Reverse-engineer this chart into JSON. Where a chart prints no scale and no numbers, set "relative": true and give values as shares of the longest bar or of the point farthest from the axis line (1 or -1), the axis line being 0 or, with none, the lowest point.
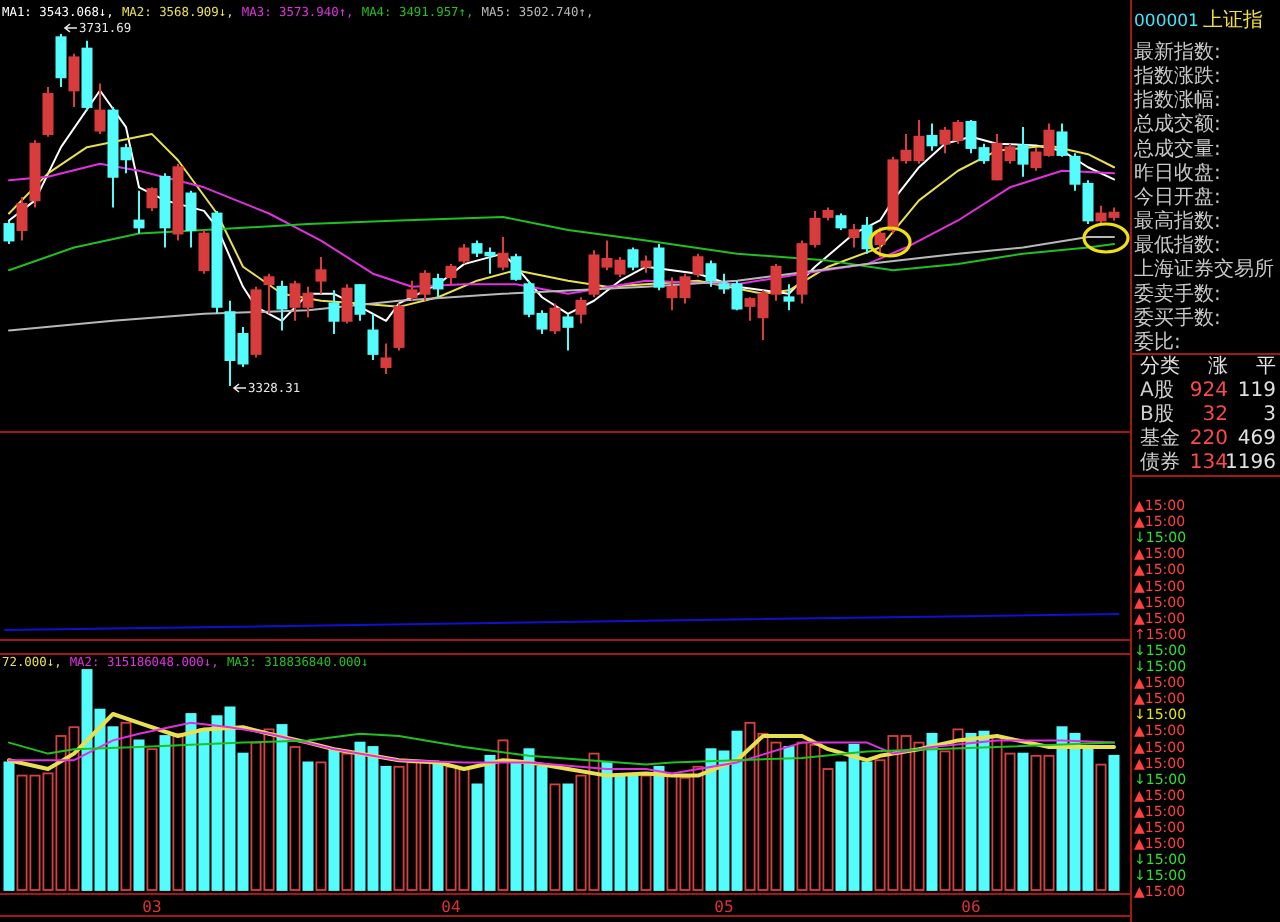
{
  "chart_data": [
    {
      "type": "candlestick",
      "tick_labels": false,
      "categories": [
        null,
        null,
        null,
        null,
        null,
        null,
        null,
        null,
        null,
        null,
        null,
        null,
        null,
        null,
        null,
        null,
        null,
        null,
        null,
        null,
        null,
        null,
        null,
        null,
        null,
        null,
        null,
        null,
        null,
        null,
        null,
        null,
        null,
        null,
        null,
        null,
        null,
        null,
        null,
        null,
        null,
        null,
        null,
        null,
        null,
        null,
        null,
        null,
        null,
        null,
        null,
        null,
        null,
        null,
        null,
        null,
        null,
        null,
        null,
        null,
        null,
        null,
        null,
        null,
        null,
        null,
        null,
        null,
        null,
        null,
        null,
        null,
        null,
        null,
        null,
        null,
        null,
        null,
        null,
        null,
        null,
        null,
        null,
        null,
        null,
        null
      ],
      "ohlc": [
        [
          3514,
          3518,
          3491,
          3495
        ],
        [
          3507,
          3545,
          3495,
          3537
        ],
        [
          3541,
          3610,
          3533,
          3606
        ],
        [
          3617,
          3671,
          3614,
          3663
        ],
        [
          3728,
          3731.69,
          3671,
          3682
        ],
        [
          3667,
          3709,
          3648,
          3705
        ],
        [
          3715,
          3724,
          3644,
          3648
        ],
        [
          3621,
          3675,
          3617,
          3644
        ],
        [
          3644,
          3648,
          3533,
          3568
        ],
        [
          3601,
          3606,
          3572,
          3588
        ],
        [
          3518,
          3552,
          3503,
          3510
        ],
        [
          3533,
          3556,
          3529,
          3554
        ],
        [
          3568,
          3572,
          3487,
          3510
        ],
        [
          3503,
          3583,
          3495,
          3579
        ],
        [
          3549,
          3552,
          3487,
          3507
        ],
        [
          3461,
          3507,
          3457,
          3503
        ],
        [
          3526,
          3529,
          3411,
          3419
        ],
        [
          3413,
          3426,
          3328.31,
          3358
        ],
        [
          3388,
          3396,
          3350,
          3354
        ],
        [
          3365,
          3442,
          3361,
          3438
        ],
        [
          3445,
          3457,
          3411,
          3453
        ],
        [
          3442,
          3449,
          3392,
          3417
        ],
        [
          3419,
          3449,
          3403,
          3445
        ],
        [
          3419,
          3442,
          3407,
          3434
        ],
        [
          3449,
          3476,
          3434,
          3461
        ],
        [
          3423,
          3438,
          3388,
          3403
        ],
        [
          3403,
          3445,
          3400,
          3440
        ],
        [
          3444,
          3445,
          3403,
          3411
        ],
        [
          3392,
          3411,
          3358,
          3365
        ],
        [
          3350,
          3377,
          3342,
          3360
        ],
        [
          3373,
          3423,
          3369,
          3419
        ],
        [
          3430,
          3449,
          3426,
          3438
        ],
        [
          3434,
          3461,
          3426,
          3457
        ],
        [
          3451,
          3457,
          3430,
          3440
        ],
        [
          3453,
          3468,
          3445,
          3465
        ],
        [
          3472,
          3491,
          3468,
          3486
        ],
        [
          3491,
          3495,
          3476,
          3481
        ],
        [
          3481,
          3487,
          3457,
          3478
        ],
        [
          3465,
          3499,
          3461,
          3480
        ],
        [
          3476,
          3480,
          3449,
          3451
        ],
        [
          3445,
          3449,
          3407,
          3411
        ],
        [
          3411,
          3415,
          3388,
          3394
        ],
        [
          3392,
          3423,
          3388,
          3417
        ],
        [
          3407,
          3411,
          3369,
          3396
        ],
        [
          3411,
          3430,
          3400,
          3426
        ],
        [
          3434,
          3484,
          3430,
          3478
        ],
        [
          3465,
          3495,
          3461,
          3474
        ],
        [
          3457,
          3476,
          3453,
          3472
        ],
        [
          3484,
          3487,
          3461,
          3465
        ],
        [
          3465,
          3478,
          3458,
          3471
        ],
        [
          3486,
          3491,
          3438,
          3442
        ],
        [
          3430,
          3453,
          3415,
          3442
        ],
        [
          3430,
          3457,
          3423,
          3453
        ],
        [
          3457,
          3480,
          3453,
          3476
        ],
        [
          3468,
          3472,
          3442,
          3449
        ],
        [
          3445,
          3457,
          3434,
          3440
        ],
        [
          3445,
          3449,
          3415,
          3417
        ],
        [
          3420,
          3430,
          3403,
          3428
        ],
        [
          3407,
          3438,
          3381,
          3434
        ],
        [
          3434,
          3468,
          3426,
          3465
        ],
        [
          3430,
          3445,
          3415,
          3426
        ],
        [
          3434,
          3495,
          3423,
          3491
        ],
        [
          3491,
          3529,
          3487,
          3520
        ],
        [
          3522,
          3533,
          3518,
          3529
        ],
        [
          3523,
          3526,
          3507,
          3510
        ],
        [
          3499,
          3514,
          3487,
          3507
        ],
        [
          3512,
          3522,
          3480,
          3486
        ],
        [
          3491,
          3510,
          3476,
          3503
        ],
        [
          3507,
          3591,
          3503,
          3587
        ],
        [
          3587,
          3617,
          3583,
          3598
        ],
        [
          3587,
          3633,
          3583,
          3614
        ],
        [
          3615,
          3629,
          3598,
          3604
        ],
        [
          3606,
          3625,
          3595,
          3621
        ],
        [
          3610,
          3633,
          3606,
          3630
        ],
        [
          3631,
          3633,
          3595,
          3601
        ],
        [
          3601,
          3606,
          3583,
          3587
        ],
        [
          3565,
          3617,
          3564,
          3606
        ],
        [
          3587,
          3606,
          3583,
          3602
        ],
        [
          3604,
          3625,
          3568,
          3583
        ],
        [
          3579,
          3601,
          3575,
          3596
        ],
        [
          3593,
          3629,
          3591,
          3621
        ],
        [
          3619,
          3629,
          3591,
          3593
        ],
        [
          3591,
          3595,
          3552,
          3560
        ],
        [
          3560,
          3564,
          3514,
          3518
        ],
        [
          3518,
          3535,
          3514,
          3526
        ],
        [
          3522,
          3533,
          3518,
          3527
        ]
      ],
      "series": [
        {
          "type": "line",
          "name": "MA1: 3543.068↓,",
          "color": "#ffffff",
          "values": [
            3518,
            null,
            3541,
            null,
            3602,
            null,
            null,
            3667,
            null,
            3625,
            3556,
            null,
            3541,
            null,
            null,
            3529,
            3510,
            null,
            3442,
            3419,
            null,
            3403,
            null,
            3434,
            null,
            3434,
            null,
            3419,
            null,
            3403,
            3423,
            null,
            null,
            3445,
            null,
            3468,
            null,
            null,
            3480,
            3465,
            null,
            3430,
            null,
            3411,
            null,
            3426,
            null,
            3449,
            null,
            3465,
            null,
            3461,
            null,
            3457,
            null,
            null,
            3442,
            null,
            3438,
            null,
            3434,
            null,
            3465,
            null,
            null,
            3503,
            null,
            3518,
            3541,
            null,
            3579,
            null,
            3606,
            null,
            3614,
            null,
            3606,
            null,
            null,
            3604,
            null,
            3598,
            null,
            3579,
            null,
            3565
          ]
        },
        {
          "type": "line",
          "name": "MA2: 3568.909↓,",
          "color": "#e8e050",
          "values": [
            3526,
            null,
            null,
            3572,
            null,
            null,
            3602,
            null,
            null,
            null,
            null,
            3617,
            null,
            3587,
            null,
            null,
            3526,
            null,
            3465,
            null,
            null,
            3434,
            null,
            null,
            3426,
            null,
            null,
            3423,
            null,
            null,
            3419,
            null,
            null,
            3430,
            null,
            null,
            3449,
            null,
            null,
            3461,
            null,
            null,
            null,
            3449,
            null,
            null,
            3442,
            null,
            null,
            3445,
            null,
            null,
            null,
            3449,
            null,
            null,
            null,
            null,
            3434,
            null,
            3438,
            null,
            null,
            3465,
            null,
            null,
            null,
            3487,
            null,
            null,
            3541,
            null,
            null,
            3575,
            null,
            null,
            3598,
            null,
            null,
            null,
            3604,
            null,
            null,
            3594,
            null,
            3579
          ]
        },
        {
          "type": "line",
          "name": "MA3: 3573.940↑,",
          "color": "#e030e0",
          "values": [
            3564,
            null,
            null,
            3568,
            null,
            null,
            null,
            3583,
            null,
            null,
            3575,
            null,
            null,
            null,
            null,
            3556,
            null,
            null,
            null,
            null,
            3526,
            null,
            null,
            null,
            3495,
            null,
            null,
            null,
            3457,
            null,
            null,
            3442,
            null,
            null,
            null,
            3445,
            null,
            null,
            null,
            3445,
            null,
            null,
            null,
            3434,
            null,
            null,
            null,
            null,
            null,
            3449,
            null,
            null,
            null,
            null,
            null,
            null,
            3445,
            null,
            null,
            null,
            null,
            3457,
            null,
            null,
            null,
            null,
            3468,
            null,
            null,
            3487,
            null,
            null,
            null,
            3518,
            null,
            null,
            null,
            3556,
            null,
            null,
            null,
            3575,
            null,
            null,
            null,
            3572
          ]
        },
        {
          "type": "line",
          "name": "MA4: 3491.957↑,",
          "color": "#20c020",
          "values": [
            3461,
            null,
            null,
            null,
            null,
            3487,
            null,
            null,
            null,
            null,
            3503,
            null,
            null,
            null,
            null,
            3507,
            null,
            null,
            null,
            null,
            null,
            null,
            null,
            3514,
            null,
            null,
            null,
            null,
            null,
            null,
            3518,
            null,
            null,
            null,
            null,
            null,
            null,
            null,
            3522,
            null,
            null,
            null,
            null,
            3507,
            null,
            null,
            null,
            null,
            null,
            3495,
            null,
            null,
            null,
            null,
            null,
            null,
            3480,
            null,
            null,
            null,
            null,
            null,
            null,
            3472,
            null,
            null,
            null,
            null,
            3461,
            null,
            null,
            null,
            null,
            3468,
            null,
            null,
            null,
            null,
            3480,
            null,
            null,
            null,
            null,
            3487,
            null,
            3491
          ]
        },
        {
          "type": "line",
          "name": "MA5: 3502.740↑,",
          "color": "#b8b8b8",
          "values": [
            3392,
            null,
            null,
            null,
            null,
            null,
            null,
            null,
            3403,
            null,
            null,
            null,
            null,
            null,
            null,
            3411,
            null,
            null,
            null,
            null,
            null,
            null,
            null,
            3415,
            null,
            null,
            null,
            null,
            null,
            null,
            3426,
            null,
            null,
            null,
            null,
            null,
            null,
            null,
            3434,
            null,
            null,
            null,
            null,
            null,
            null,
            null,
            null,
            null,
            null,
            3442,
            null,
            null,
            null,
            null,
            null,
            null,
            3449,
            null,
            null,
            null,
            null,
            null,
            null,
            null,
            null,
            null,
            3468,
            null,
            null,
            null,
            null,
            null,
            null,
            3480,
            null,
            null,
            null,
            null,
            3487,
            null,
            null,
            null,
            null,
            3499,
            null,
            3499
          ]
        }
      ],
      "annotations": [
        "3731.69",
        "3328.31"
      ]
    },
    {
      "type": "line",
      "relative": true,
      "tick_labels": false,
      "categories": [
        null,
        null,
        null
      ],
      "series": [
        {
          "color": "#1010d0",
          "values": [
            0,
            0.5,
            1
          ]
        }
      ]
    },
    {
      "type": "bar",
      "relative": true,
      "tick_labels": "x",
      "categories": [
        null,
        null,
        null,
        null,
        null,
        null,
        null,
        null,
        null,
        null,
        null,
        "03",
        null,
        null,
        null,
        null,
        null,
        null,
        null,
        null,
        null,
        null,
        null,
        null,
        null,
        null,
        null,
        null,
        null,
        null,
        null,
        null,
        null,
        null,
        "04",
        null,
        null,
        null,
        null,
        null,
        null,
        null,
        null,
        null,
        null,
        null,
        null,
        null,
        null,
        null,
        null,
        null,
        null,
        null,
        null,
        "05",
        null,
        null,
        null,
        null,
        null,
        null,
        null,
        null,
        null,
        null,
        null,
        null,
        null,
        null,
        null,
        null,
        null,
        null,
        "06",
        null,
        null,
        null,
        null,
        null,
        null,
        null,
        null,
        null,
        null,
        null
      ],
      "series": [
        {
          "type": "bar",
          "values": [
            0.58,
            0.52,
            0.52,
            0.53,
            0.7,
            0.74,
            1,
            0.82,
            0.74,
            0.76,
            0.68,
            0.64,
            0.7,
            0.71,
            0.8,
            0.73,
            0.79,
            0.83,
            0.62,
            0.67,
            0.73,
            0.75,
            0.65,
            0.58,
            0.58,
            0.64,
            0.62,
            0.67,
            0.65,
            0.56,
            0.56,
            0.58,
            0.58,
            0.58,
            0.56,
            0.55,
            0.48,
            0.61,
            0.68,
            0.58,
            0.64,
            0.56,
            0.48,
            0.48,
            0.52,
            0.62,
            0.58,
            0.52,
            0.52,
            0.52,
            0.56,
            0.52,
            0.51,
            0.56,
            0.64,
            0.63,
            0.72,
            0.76,
            0.71,
            0.67,
            0.65,
            0.67,
            0.66,
            0.55,
            0.58,
            0.66,
            0.58,
            0.59,
            0.7,
            0.7,
            0.67,
            0.71,
            0.63,
            0.73,
            0.71,
            0.72,
            0.7,
            0.62,
            0.62,
            0.61,
            0.61,
            0.74,
            0.71,
            0.64,
            0.57,
            0.61
          ],
          "colors": [
            "#54fcfc",
            "#d84040",
            "#d84040",
            "#d84040",
            "#d84040",
            "#d84040",
            "#54fcfc",
            "#54fcfc",
            "#54fcfc",
            "#d84040",
            "#54fcfc",
            "#d84040",
            "#54fcfc",
            "#d84040",
            "#54fcfc",
            "#54fcfc",
            "#54fcfc",
            "#54fcfc",
            "#54fcfc",
            "#d84040",
            "#d84040",
            "#54fcfc",
            "#d84040",
            "#54fcfc",
            "#d84040",
            "#54fcfc",
            "#d84040",
            "#54fcfc",
            "#54fcfc",
            "#54fcfc",
            "#d84040",
            "#d84040",
            "#d84040",
            "#54fcfc",
            "#d84040",
            "#d84040",
            "#54fcfc",
            "#54fcfc",
            "#d84040",
            "#54fcfc",
            "#54fcfc",
            "#54fcfc",
            "#d84040",
            "#54fcfc",
            "#d84040",
            "#d84040",
            "#54fcfc",
            "#54fcfc",
            "#54fcfc",
            "#d84040",
            "#54fcfc",
            "#d84040",
            "#d84040",
            "#d84040",
            "#54fcfc",
            "#54fcfc",
            "#54fcfc",
            "#d84040",
            "#d84040",
            "#d84040",
            "#54fcfc",
            "#d84040",
            "#d84040",
            "#d84040",
            "#54fcfc",
            "#54fcfc",
            "#54fcfc",
            "#d84040",
            "#d84040",
            "#d84040",
            "#d84040",
            "#54fcfc",
            "#d84040",
            "#d84040",
            "#54fcfc",
            "#54fcfc",
            "#d84040",
            "#d84040",
            "#54fcfc",
            "#d84040",
            "#d84040",
            "#54fcfc",
            "#54fcfc",
            "#54fcfc",
            "#d84040",
            "#54fcfc"
          ]
        },
        {
          "type": "line",
          "name": "72.000↓,",
          "color": "#e8e050",
          "values": [
            0.59,
            null,
            null,
            0.55,
            null,
            0.62,
            null,
            null,
            0.8,
            null,
            0.76,
            null,
            null,
            0.7,
            null,
            0.73,
            null,
            null,
            0.74,
            null,
            0.71,
            null,
            null,
            0.67,
            null,
            0.64,
            null,
            null,
            0.61,
            null,
            0.59,
            null,
            null,
            0.58,
            null,
            0.55,
            null,
            null,
            0.59,
            null,
            0.58,
            null,
            null,
            0.55,
            null,
            null,
            0.52,
            null,
            null,
            0.53,
            null,
            0.52,
            null,
            0.52,
            null,
            null,
            0.59,
            null,
            0.7,
            null,
            null,
            0.7,
            null,
            0.64,
            null,
            null,
            0.59,
            0.61,
            null,
            null,
            0.64,
            null,
            null,
            0.68,
            null,
            null,
            0.7,
            null,
            null,
            null,
            0.65,
            null,
            null,
            null,
            null,
            0.65
          ]
        },
        {
          "type": "line",
          "name": "MA2: 315186048.000↓,",
          "color": "#e030e0",
          "values": [
            0.59,
            null,
            null,
            null,
            null,
            0.59,
            null,
            null,
            0.68,
            null,
            0.71,
            null,
            null,
            null,
            0.76,
            null,
            null,
            0.74,
            null,
            null,
            0.71,
            null,
            null,
            null,
            null,
            0.64,
            null,
            null,
            null,
            null,
            0.59,
            null,
            null,
            null,
            null,
            0.58,
            null,
            null,
            null,
            null,
            0.58,
            null,
            null,
            null,
            null,
            null,
            0.55,
            null,
            null,
            0.55,
            null,
            0.53,
            null,
            null,
            null,
            null,
            0.58,
            null,
            null,
            null,
            null,
            0.67,
            null,
            null,
            null,
            null,
            0.67,
            null,
            0.62,
            null,
            null,
            0.65,
            null,
            null,
            null,
            null,
            0.68,
            null,
            null,
            null,
            null,
            0.68,
            null,
            null,
            null,
            0.67
          ]
        },
        {
          "type": "line",
          "name": "MA3: 318836840.000↓",
          "color": "#20c020",
          "values": [
            0.67,
            null,
            null,
            0.62,
            null,
            0.64,
            null,
            null,
            null,
            null,
            0.65,
            null,
            null,
            null,
            null,
            null,
            null,
            null,
            0.67,
            null,
            null,
            null,
            null,
            0.68,
            null,
            null,
            null,
            0.71,
            null,
            null,
            0.7,
            null,
            null,
            null,
            null,
            0.65,
            null,
            null,
            null,
            null,
            0.61,
            null,
            null,
            null,
            null,
            null,
            null,
            null,
            null,
            0.57,
            null,
            0.58,
            null,
            null,
            null,
            null,
            0.59,
            null,
            null,
            null,
            null,
            0.6,
            null,
            null,
            null,
            null,
            0.63,
            null,
            null,
            null,
            null,
            0.64,
            null,
            null,
            null,
            null,
            0.65,
            null,
            null,
            null,
            null,
            null,
            null,
            null,
            null,
            0.67
          ]
        }
      ]
    },
    {
      "type": "other",
      "title": "000001 上证指",
      "annotations": [
        "最新指数:",
        "指数涨跌:",
        "指数涨幅:",
        "总成交额:",
        "总成交量:",
        "昨日收盘:",
        "今日开盘:",
        "最高指数:",
        "最低指数:",
        "上海证券交易所",
        "委卖手数:",
        "委买手数:",
        "委比:"
      ]
    },
    {
      "type": "other",
      "annotations": [
        "分类",
        "涨",
        "平",
        "A股",
        "924",
        "119",
        "B股",
        "32",
        "3",
        "基金",
        "220",
        "469",
        "债券",
        "134",
        "1196"
      ]
    },
    {
      "type": "other",
      "annotations": [
        "▲15:00",
        "▲15:00",
        "↓15:00",
        "▲15:00",
        "▲15:00",
        "▲15:00",
        "▲15:00",
        "▲15:00",
        "↑15:00",
        "↓15:00",
        "↓15:00",
        "▲15:00",
        "▲15:00",
        "↓15:00",
        "▲15:00",
        "▲15:00",
        "▲15:00",
        "↓15:00",
        "▲15:00",
        "▲15:00",
        "▲15:00",
        "▲15:00",
        "↓15:00",
        "↓15:00",
        "▲15:00"
      ],
      "colors": [
        "#ff4040",
        "#ff4040",
        "#30e030",
        "#ff4040",
        "#ff4040",
        "#ff4040",
        "#ff4040",
        "#ff4040",
        "#ff4040",
        "#30e030",
        "#30e030",
        "#ff4040",
        "#ff4040",
        "#e8e800",
        "#ff4040",
        "#ff4040",
        "#ff4040",
        "#30e030",
        "#ff4040",
        "#ff4040",
        "#ff4040",
        "#ff4040",
        "#30e030",
        "#30e030",
        "#ff4040"
      ]
    }
  ]
}
